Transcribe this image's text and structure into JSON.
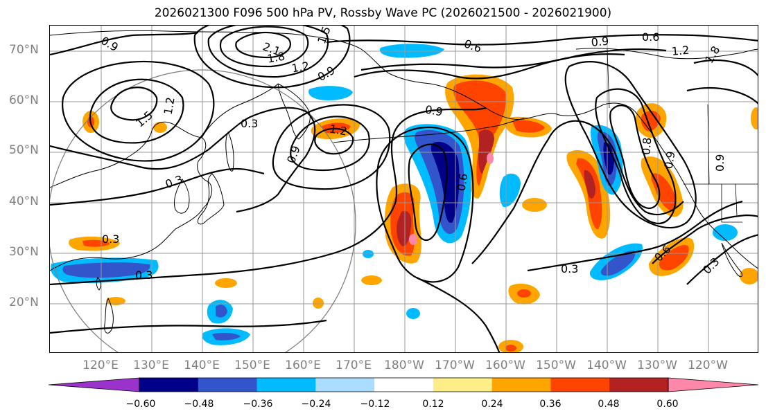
{
  "title": "2026021300 F096 500 hPa PV, Rossby Wave PC (2026021500 - 2026021900)",
  "lat_labels": [
    "70°N",
    "60°N",
    "50°N",
    "40°N",
    "30°N",
    "20°N"
  ],
  "lon_labels": [
    "120°E",
    "130°E",
    "140°E",
    "150°E",
    "160°E",
    "170°E",
    "180°W",
    "170°W",
    "160°W",
    "150°W",
    "140°W",
    "130°W",
    "120°W"
  ],
  "map": {
    "lat_range": [
      10,
      75
    ],
    "lon_range_east": [
      113,
      253
    ],
    "gridline_color": "#808080",
    "contour_color": "#000000",
    "contour_labels": [
      "0.9",
      "1.5",
      "2.1",
      "1.8",
      "1.2",
      "0.9",
      "0.6",
      "0.9",
      "0.6",
      "1.2",
      "1.8",
      "1.5",
      "1.2",
      "0.3",
      "0.9",
      "1.2",
      "0.3",
      "0.9",
      "0.6",
      "0.3",
      "0.3",
      "0.3",
      "0.6",
      "0.3",
      "0.9",
      "0.8",
      "0.9"
    ],
    "shading_features": [
      {
        "name": "negative anomaly over southern China",
        "level": -0.48
      },
      {
        "name": "negative anomaly trough near 175W",
        "level": -0.6
      },
      {
        "name": "positive anomaly ridge near 160W",
        "level": 0.6
      },
      {
        "name": "negative anomaly near 138W",
        "level": -0.48
      },
      {
        "name": "positive anomaly near 125W",
        "level": 0.48
      }
    ]
  },
  "colorbar": {
    "colors": [
      "#9933cc",
      "#000088",
      "#3355cc",
      "#00bbff",
      "#aaddff",
      "#ffffff",
      "#ffee88",
      "#ffa500",
      "#ff4400",
      "#b22222",
      "#ff88aa"
    ],
    "tick_labels": [
      "−0.60",
      "−0.48",
      "−0.36",
      "−0.24",
      "−0.12",
      "0.12",
      "0.24",
      "0.36",
      "0.48",
      "0.60"
    ]
  }
}
